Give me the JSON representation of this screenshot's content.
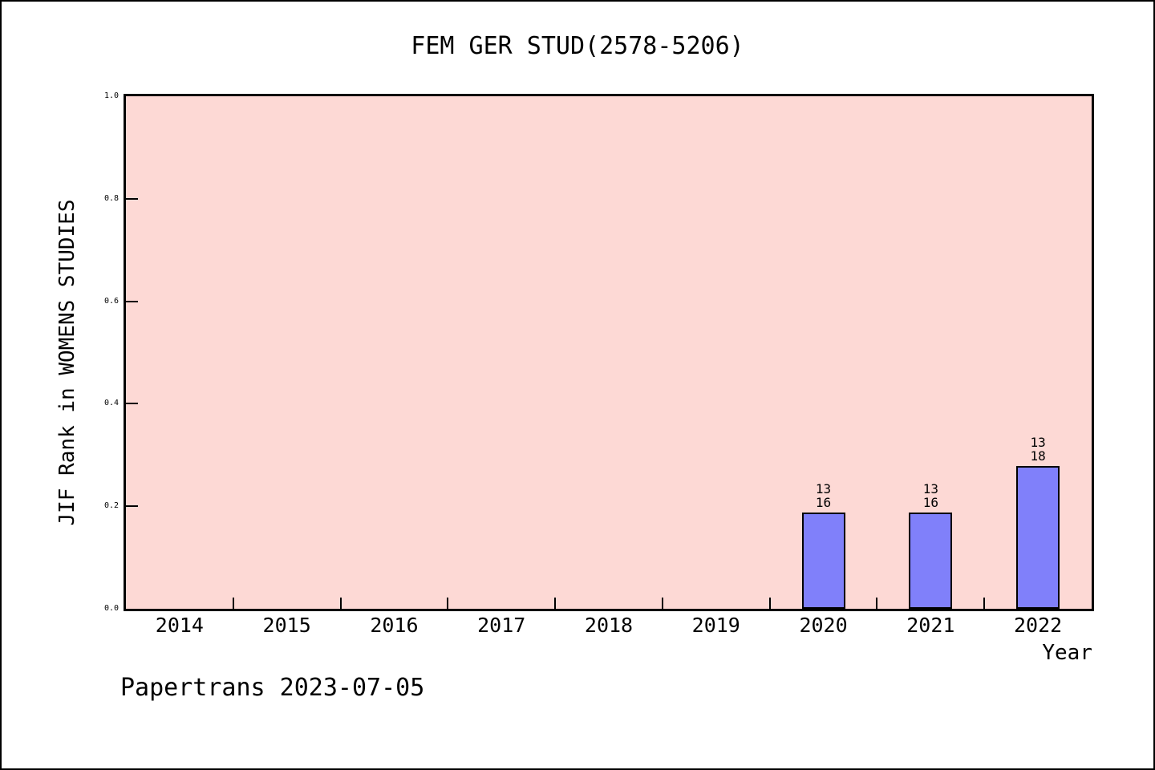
{
  "title": "FEM GER STUD(2578-5206)",
  "footer": {
    "text": "Papertrans 2023-07-05"
  },
  "colors": {
    "figure_bg": "#ffffff",
    "plot_bg": "#fdd9d5",
    "bar_fill": "#8080fa",
    "bar_edge": "#000000",
    "axis": "#000000",
    "text": "#000000"
  },
  "chart_data": {
    "type": "bar",
    "title": "FEM GER STUD(2578-5206)",
    "xlabel": "Year",
    "ylabel": "JIF Rank in WOMENS STUDIES",
    "categories": [
      "2014",
      "2015",
      "2016",
      "2017",
      "2018",
      "2019",
      "2020",
      "2021",
      "2022"
    ],
    "values": [
      null,
      null,
      null,
      null,
      null,
      null,
      0.1875,
      0.1875,
      0.2778
    ],
    "bars": [
      {
        "year": "2020",
        "rank": "13",
        "total": "16",
        "value": 0.1875
      },
      {
        "year": "2021",
        "rank": "13",
        "total": "16",
        "value": 0.1875
      },
      {
        "year": "2022",
        "rank": "13",
        "total": "18",
        "value": 0.2778
      }
    ],
    "ylim": [
      0,
      1
    ],
    "yticks": [
      {
        "value": 0.0,
        "label": "0.0"
      },
      {
        "value": 0.2,
        "label": "0.2"
      },
      {
        "value": 0.4,
        "label": "0.4"
      },
      {
        "value": 0.6,
        "label": "0.6"
      },
      {
        "value": 0.8,
        "label": "0.8"
      },
      {
        "value": 1.0,
        "label": "1.0"
      }
    ],
    "grid": false,
    "legend": null,
    "tick_style": "inward, x ticks at category boundaries"
  }
}
